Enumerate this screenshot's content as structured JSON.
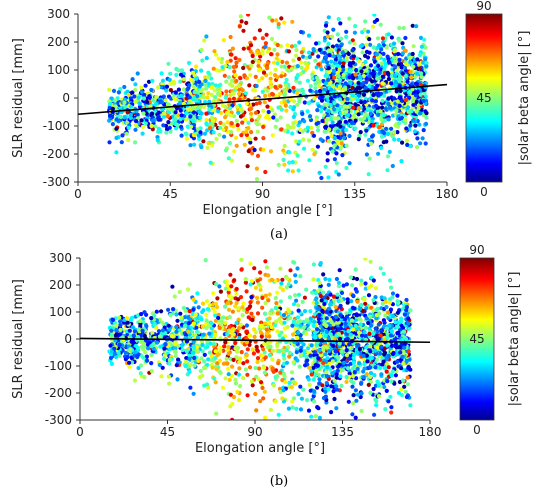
{
  "caption_a": "(a)",
  "caption_b": "(b)",
  "chart_data": [
    {
      "id": "a",
      "type": "scatter",
      "title": "",
      "xlabel": "Elongation angle [°]",
      "ylabel": "SLR residual [mm]",
      "xlim": [
        0,
        180
      ],
      "ylim": [
        -300,
        300
      ],
      "xticks": [
        0,
        45,
        90,
        135,
        180
      ],
      "yticks": [
        -300,
        -200,
        -100,
        0,
        100,
        200,
        300
      ],
      "colorbar_label": "|solar beta angle| [°]",
      "colorbar_range": [
        0,
        90
      ],
      "colorbar_ticks": [
        0,
        45,
        90
      ],
      "colormap": "jet",
      "trend_line": [
        [
          0,
          -58
        ],
        [
          180,
          48
        ]
      ],
      "point_density_description_color": "#000000"
    },
    {
      "id": "b",
      "type": "scatter",
      "title": "",
      "xlabel": "Elongation angle [°]",
      "ylabel": "SLR residual [mm]",
      "xlim": [
        0,
        180
      ],
      "ylim": [
        -300,
        300
      ],
      "xticks": [
        0,
        45,
        90,
        135,
        180
      ],
      "yticks": [
        -300,
        -200,
        -100,
        0,
        100,
        200,
        300
      ],
      "colorbar_label": "|solar beta angle| [°]",
      "colorbar_range": [
        0,
        90
      ],
      "colorbar_ticks": [
        0,
        45,
        90
      ],
      "colormap": "jet",
      "trend_line": [
        [
          0,
          2
        ],
        [
          180,
          -12
        ]
      ],
      "point_density_description_color": "#000000"
    }
  ]
}
